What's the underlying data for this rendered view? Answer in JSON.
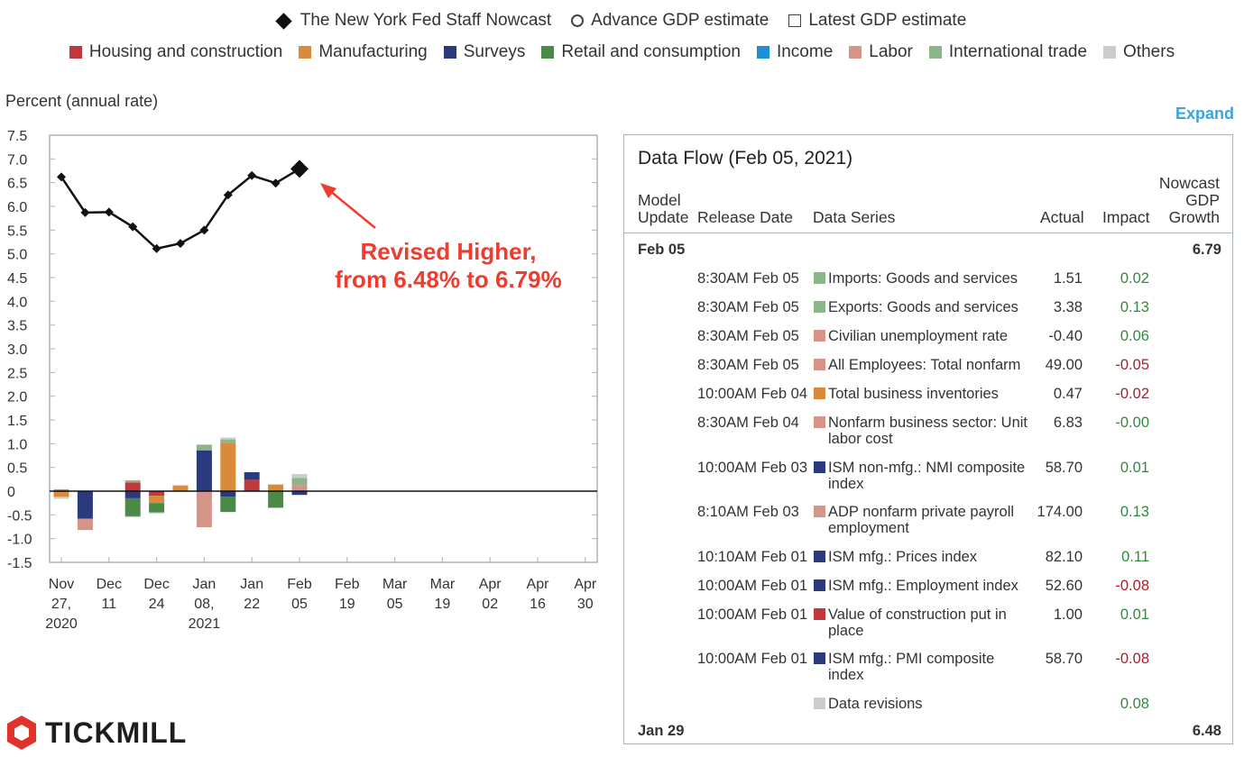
{
  "legend_top": [
    {
      "label": "The New York Fed Staff Nowcast",
      "icon": "diamond"
    },
    {
      "label": "Advance GDP estimate",
      "icon": "circle"
    },
    {
      "label": "Latest GDP estimate",
      "icon": "square"
    }
  ],
  "categories": [
    {
      "label": "Housing and construction",
      "color": "#c0393c"
    },
    {
      "label": "Manufacturing",
      "color": "#d98a3a"
    },
    {
      "label": "Surveys",
      "color": "#2b3a7d"
    },
    {
      "label": "Retail and consumption",
      "color": "#4a8a46"
    },
    {
      "label": "Income",
      "color": "#1e8fd4"
    },
    {
      "label": "Labor",
      "color": "#d4958a"
    },
    {
      "label": "International trade",
      "color": "#8cb58a"
    },
    {
      "label": "Others",
      "color": "#cccccc"
    }
  ],
  "chart_data": {
    "type": "line",
    "ylabel": "Percent (annual rate)",
    "ylim": [
      -1.5,
      7.5
    ],
    "yticks": [
      "7.5",
      "7.0",
      "6.5",
      "6.0",
      "5.5",
      "5.0",
      "4.5",
      "4.0",
      "3.5",
      "3.0",
      "2.5",
      "2.0",
      "1.5",
      "1.0",
      "0.5",
      "0",
      "-0.5",
      "-1.0",
      "-1.5"
    ],
    "xticks": [
      {
        "l1": "Nov",
        "l2": "27,",
        "l3": "2020"
      },
      {
        "l1": "Dec",
        "l2": "11",
        "l3": ""
      },
      {
        "l1": "Dec",
        "l2": "24",
        "l3": ""
      },
      {
        "l1": "Jan",
        "l2": "08,",
        "l3": "2021"
      },
      {
        "l1": "Jan",
        "l2": "22",
        "l3": ""
      },
      {
        "l1": "Feb",
        "l2": "05",
        "l3": ""
      },
      {
        "l1": "Feb",
        "l2": "19",
        "l3": ""
      },
      {
        "l1": "Mar",
        "l2": "05",
        "l3": ""
      },
      {
        "l1": "Mar",
        "l2": "19",
        "l3": ""
      },
      {
        "l1": "Apr",
        "l2": "02",
        "l3": ""
      },
      {
        "l1": "Apr",
        "l2": "16",
        "l3": ""
      },
      {
        "l1": "Apr",
        "l2": "30",
        "l3": ""
      }
    ],
    "series": [
      {
        "name": "The New York Fed Staff Nowcast",
        "values": [
          6.62,
          5.87,
          5.88,
          5.57,
          5.11,
          5.22,
          5.5,
          6.24,
          6.65,
          6.49,
          6.79
        ]
      }
    ],
    "weeks": [
      0,
      1,
      2,
      3,
      4,
      5,
      6,
      7,
      8,
      9,
      10
    ],
    "stacks": [
      [
        {
          "c": "Manufacturing",
          "v": 0.04
        },
        {
          "c": "Retail and consumption",
          "v": -0.02
        },
        {
          "c": "Manufacturing",
          "v": -0.1
        },
        {
          "c": "Others",
          "v": -0.04
        }
      ],
      [
        {
          "c": "Surveys",
          "v": -0.58
        },
        {
          "c": "Labor",
          "v": -0.24
        }
      ],
      [],
      [
        {
          "c": "Housing and construction",
          "v": 0.18
        },
        {
          "c": "Labor",
          "v": 0.02
        },
        {
          "c": "International trade",
          "v": 0.03
        },
        {
          "c": "Surveys",
          "v": -0.15
        },
        {
          "c": "Retail and consumption",
          "v": -0.38
        },
        {
          "c": "Others",
          "v": -0.02
        }
      ],
      [
        {
          "c": "Housing and construction",
          "v": -0.1
        },
        {
          "c": "Manufacturing",
          "v": -0.15
        },
        {
          "c": "Retail and consumption",
          "v": -0.2
        },
        {
          "c": "Others",
          "v": -0.02
        }
      ],
      [
        {
          "c": "Manufacturing",
          "v": 0.12
        }
      ],
      [
        {
          "c": "Surveys",
          "v": 0.86
        },
        {
          "c": "International trade",
          "v": 0.12
        },
        {
          "c": "Labor",
          "v": -0.76
        }
      ],
      [
        {
          "c": "Manufacturing",
          "v": 1.02
        },
        {
          "c": "International trade",
          "v": 0.07
        },
        {
          "c": "Others",
          "v": 0.04
        },
        {
          "c": "Surveys",
          "v": -0.12
        },
        {
          "c": "Retail and consumption",
          "v": -0.32
        }
      ],
      [
        {
          "c": "Housing and construction",
          "v": 0.24
        },
        {
          "c": "Surveys",
          "v": 0.16
        }
      ],
      [
        {
          "c": "Manufacturing",
          "v": 0.14
        },
        {
          "c": "Retail and consumption",
          "v": -0.35
        }
      ],
      [
        {
          "c": "Labor",
          "v": 0.13
        },
        {
          "c": "International trade",
          "v": 0.15
        },
        {
          "c": "Others",
          "v": 0.08
        },
        {
          "c": "Surveys",
          "v": -0.08
        }
      ]
    ],
    "annotation": {
      "line1": "Revised Higher,",
      "line2": "from 6.48% to 6.79%",
      "color": "#ee3c2f"
    }
  },
  "expand_label": "Expand",
  "dataflow": {
    "title": "Data Flow (Feb 05, 2021)",
    "headers": {
      "model1": "Model",
      "model2": "Update",
      "release": "Release Date",
      "series": "Data Series",
      "actual": "Actual",
      "impact": "Impact",
      "nowcast1": "Nowcast",
      "nowcast2": "GDP",
      "nowcast3": "Growth"
    },
    "group1": {
      "label": "Feb 05",
      "value": "6.79"
    },
    "rows": [
      {
        "date": "8:30AM Feb 05",
        "color": "#8cb58a",
        "s1": "Imports: Goods and services",
        "s2": "",
        "actual": "1.51",
        "impact": "0.02",
        "sign": "pos"
      },
      {
        "date": "8:30AM Feb 05",
        "color": "#8cb58a",
        "s1": "Exports: Goods and services",
        "s2": "",
        "actual": "3.38",
        "impact": "0.13",
        "sign": "pos"
      },
      {
        "date": "8:30AM Feb 05",
        "color": "#d4958a",
        "s1": "Civilian unemployment rate",
        "s2": "",
        "actual": "-0.40",
        "impact": "0.06",
        "sign": "pos"
      },
      {
        "date": "8:30AM Feb 05",
        "color": "#d4958a",
        "s1": "All Employees: Total nonfarm",
        "s2": "",
        "actual": "49.00",
        "impact": "-0.05",
        "sign": "neg"
      },
      {
        "date": "10:00AM Feb 04",
        "color": "#d98a3a",
        "s1": "Total business inventories",
        "s2": "",
        "actual": "0.47",
        "impact": "-0.02",
        "sign": "neg"
      },
      {
        "date": "8:30AM Feb 04",
        "color": "#d4958a",
        "s1": "Nonfarm business sector: Unit",
        "s2": "labor cost",
        "actual": "6.83",
        "impact": "-0.00",
        "sign": "pos"
      },
      {
        "date": "10:00AM Feb 03",
        "color": "#2b3a7d",
        "s1": "ISM non-mfg.: NMI composite",
        "s2": "index",
        "actual": "58.70",
        "impact": "0.01",
        "sign": "pos"
      },
      {
        "date": "8:10AM Feb 03",
        "color": "#d4958a",
        "s1": "ADP nonfarm private payroll",
        "s2": "employment",
        "actual": "174.00",
        "impact": "0.13",
        "sign": "pos"
      },
      {
        "date": "10:10AM Feb 01",
        "color": "#2b3a7d",
        "s1": "ISM mfg.: Prices index",
        "s2": "",
        "actual": "82.10",
        "impact": "0.11",
        "sign": "pos"
      },
      {
        "date": "10:00AM Feb 01",
        "color": "#2b3a7d",
        "s1": "ISM mfg.: Employment index",
        "s2": "",
        "actual": "52.60",
        "impact": "-0.08",
        "sign": "neg"
      },
      {
        "date": "10:00AM Feb 01",
        "color": "#c0393c",
        "s1": "Value of construction put in",
        "s2": "place",
        "actual": "1.00",
        "impact": "0.01",
        "sign": "pos"
      },
      {
        "date": "10:00AM Feb 01",
        "color": "#2b3a7d",
        "s1": "ISM mfg.: PMI composite",
        "s2": "index",
        "actual": "58.70",
        "impact": "-0.08",
        "sign": "neg"
      },
      {
        "date": "",
        "color": "#cccccc",
        "s1": "Data revisions",
        "s2": "",
        "actual": "",
        "impact": "0.08",
        "sign": "pos"
      }
    ],
    "group2": {
      "label": "Jan 29",
      "value": "6.48"
    }
  },
  "logo": {
    "text": "TICKMILL",
    "color": "#e0322a"
  }
}
